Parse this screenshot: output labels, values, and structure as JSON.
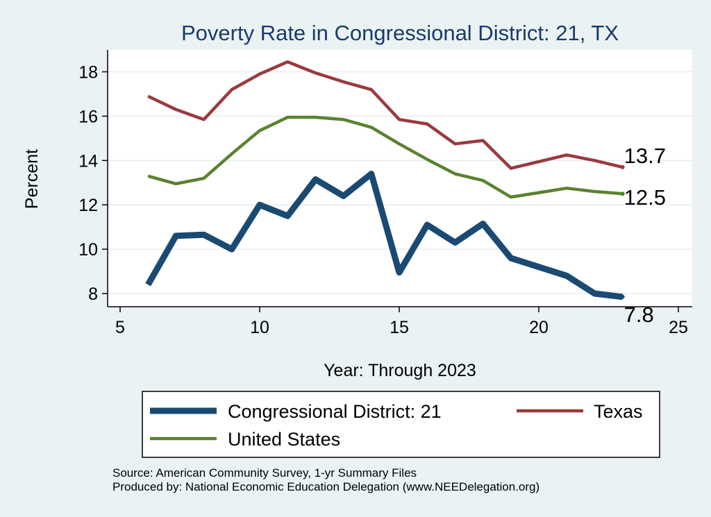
{
  "chart_data": {
    "type": "line",
    "title": "Poverty Rate in Congressional District:  21, TX",
    "xlabel": "Year: Through 2023",
    "ylabel": "Percent",
    "xlim": [
      5,
      25
    ],
    "ylim": [
      7.5,
      19.0
    ],
    "xticks": [
      5,
      10,
      15,
      20,
      25
    ],
    "yticks": [
      8,
      10,
      12,
      14,
      16,
      18
    ],
    "grid": true,
    "legend_position": "bottom",
    "series": [
      {
        "name": "Congressional District:  21",
        "color": "#1a4a72",
        "x": [
          6,
          7,
          8,
          9,
          10,
          11,
          12,
          13,
          14,
          15,
          16,
          17,
          18,
          19,
          20,
          21,
          22,
          23
        ],
        "values": [
          8.4,
          10.6,
          10.65,
          10.0,
          12.0,
          11.5,
          13.15,
          12.4,
          13.4,
          8.95,
          11.1,
          10.3,
          11.15,
          9.6,
          9.2,
          8.8,
          8.0,
          7.85
        ],
        "end_label": "7.8"
      },
      {
        "name": "Texas",
        "color": "#9a3a3e",
        "x": [
          6,
          7,
          8,
          9,
          10,
          11,
          12,
          13,
          14,
          15,
          16,
          17,
          18,
          19,
          20,
          21,
          22,
          23
        ],
        "values": [
          16.9,
          16.3,
          15.85,
          17.2,
          17.9,
          18.45,
          17.95,
          17.55,
          17.2,
          15.85,
          15.65,
          14.75,
          14.9,
          13.65,
          13.95,
          14.25,
          14.0,
          13.7
        ],
        "end_label": "13.7"
      },
      {
        "name": "United States",
        "color": "#5a8230",
        "x": [
          6,
          7,
          8,
          9,
          10,
          11,
          12,
          13,
          14,
          15,
          16,
          17,
          18,
          19,
          20,
          21,
          22,
          23
        ],
        "values": [
          13.3,
          12.95,
          13.2,
          14.3,
          15.35,
          15.95,
          15.95,
          15.85,
          15.5,
          14.75,
          14.05,
          13.4,
          13.1,
          12.35,
          12.55,
          12.75,
          12.6,
          12.5
        ],
        "end_label": "12.5"
      }
    ]
  },
  "legend": {
    "items": [
      {
        "label": "Congressional District:  21"
      },
      {
        "label": "Texas"
      },
      {
        "label": "United States"
      }
    ]
  },
  "notes": {
    "source": "Source: American Community Survey, 1-yr Summary Files",
    "produced": "Produced by: National Economic Education Delegation (www.NEEDelegation.org)"
  }
}
